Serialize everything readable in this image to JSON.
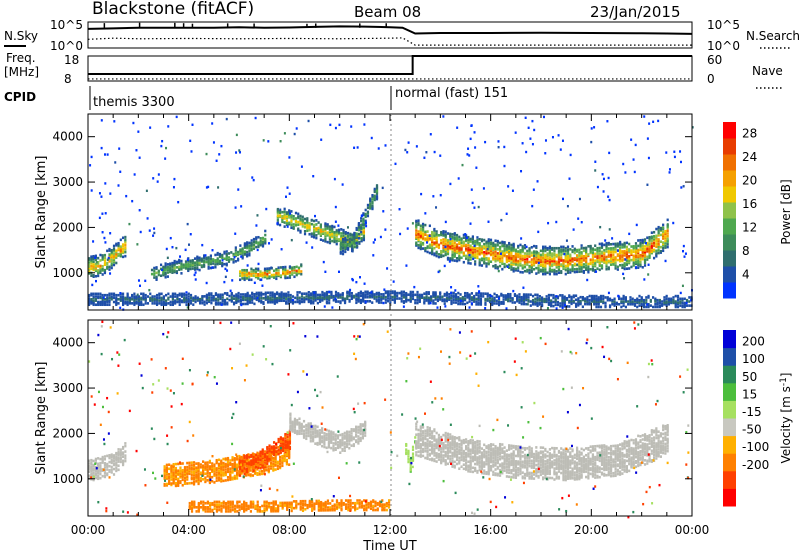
{
  "header": {
    "station": "Blackstone (fitACF)",
    "beam": "Beam 08",
    "date": "23/Jan/2015"
  },
  "top_panel": {
    "left_label": "N.Sky",
    "left_ticks": [
      "10^5",
      "10^0"
    ],
    "right_ticks": [
      "10^5",
      "10^0"
    ],
    "right_label": "N.Search"
  },
  "freq_panel": {
    "left_label_1": "Freq.",
    "left_label_2": "[MHz]",
    "left_ticks": [
      "18",
      "8"
    ],
    "right_ticks": [
      "60",
      "0"
    ],
    "right_label": "Nave"
  },
  "cpid": {
    "label": "CPID",
    "modes": [
      {
        "name": "themis 3300",
        "start_hour": 0
      },
      {
        "name": "normal (fast) 151",
        "start_hour": 12
      }
    ]
  },
  "x_axis": {
    "label": "Time UT",
    "ticks": [
      "00:00",
      "04:00",
      "08:00",
      "12:00",
      "16:00",
      "20:00",
      "00:00"
    ]
  },
  "colors": {
    "power_scale": [
      "#0033ff",
      "#1e4fa8",
      "#2f6e6e",
      "#3d8c5a",
      "#4fa84f",
      "#8fc24a",
      "#f0c800",
      "#f5a000",
      "#f07000",
      "#e83c00",
      "#ff0000"
    ],
    "velocity_scale": [
      "#ff0000",
      "#ff4000",
      "#ff8000",
      "#ffb000",
      "#c8c8c0",
      "#a6e060",
      "#4cbe3c",
      "#2a8a5a",
      "#1e4fa8",
      "#0000d8"
    ],
    "ground_scatter": "#bdbdb6"
  },
  "chart_data": [
    {
      "type": "line",
      "title": "",
      "xlabel": "",
      "ylabel": "N.Sky",
      "xlim": [
        0,
        24
      ],
      "series": [
        {
          "name": "N.Sky",
          "x": [
            0,
            1,
            2,
            3,
            4,
            5,
            6,
            7,
            8,
            9,
            10,
            11,
            12,
            12.5,
            13,
            14,
            16,
            18,
            20,
            22,
            23,
            24
          ],
          "y": [
            2.6,
            2.8,
            3.0,
            3.0,
            3.0,
            3.0,
            3.2,
            3.0,
            3.1,
            3.3,
            3.5,
            3.4,
            3.2,
            3.0,
            1.0,
            1.2,
            1.2,
            1.3,
            1.2,
            1.1,
            1.0,
            0.9
          ]
        },
        {
          "name": "N.Search",
          "x": [
            0,
            1,
            2,
            4,
            6,
            8,
            10,
            12,
            12.5,
            13,
            16,
            20,
            24
          ],
          "y": [
            -1.0,
            -0.6,
            -0.8,
            -0.7,
            -0.8,
            -0.7,
            -0.8,
            -0.6,
            -0.5,
            -3.0,
            -3.0,
            -3.0,
            -3.0
          ]
        }
      ],
      "ylim": [
        -4,
        5
      ],
      "ytick_labels": [
        "10^0",
        "10^5"
      ]
    },
    {
      "type": "line",
      "title": "",
      "xlabel": "",
      "ylabel": "Freq. [MHz]",
      "xlim": [
        0,
        24
      ],
      "series": [
        {
          "name": "Freq.",
          "x": [
            0,
            12.9,
            12.9,
            24
          ],
          "y": [
            10.8,
            10.8,
            18,
            18
          ]
        },
        {
          "name": "Nave",
          "x": [
            0,
            12.9,
            12.9,
            24
          ],
          "y": [
            5,
            5,
            5,
            5
          ]
        }
      ],
      "ylim": [
        8,
        18
      ],
      "y2lim": [
        0,
        60
      ]
    },
    {
      "type": "heatmap",
      "title": "",
      "xlabel": "",
      "ylabel": "Slant Range [km]",
      "colorbar_label": "Power [dB]",
      "colorbar_ticks": [
        4,
        8,
        12,
        16,
        20,
        24,
        28
      ],
      "zlim": [
        0,
        30
      ],
      "xlim": [
        0,
        24
      ],
      "ylim": [
        180,
        4500
      ],
      "y_ticks": [
        1000,
        2000,
        3000,
        4000
      ],
      "bands": [
        {
          "x": [
            0,
            0.5,
            1.0,
            1.5
          ],
          "center_km": [
            1150,
            1200,
            1400,
            1650
          ],
          "width_km": 450,
          "peak_db": 24
        },
        {
          "x": [
            2.5,
            3.5,
            4.5,
            5.5,
            6.5,
            7.0
          ],
          "center_km": [
            1000,
            1150,
            1250,
            1350,
            1600,
            1800
          ],
          "width_km": 300,
          "peak_db": 14
        },
        {
          "x": [
            6.0,
            7.0,
            8.0,
            8.5
          ],
          "center_km": [
            1000,
            1000,
            1050,
            1100
          ],
          "width_km": 250,
          "peak_db": 26
        },
        {
          "x": [
            7.5,
            8.5,
            9.5,
            10.5,
            11.0
          ],
          "center_km": [
            2300,
            2100,
            1900,
            1700,
            2000
          ],
          "width_km": 400,
          "peak_db": 20
        },
        {
          "x": [
            10.0,
            10.5,
            11.0,
            11.5
          ],
          "center_km": [
            1600,
            1700,
            2300,
            2900
          ],
          "width_km": 350,
          "peak_db": 12
        },
        {
          "x": [
            13.0,
            14.0,
            15.0,
            16.0,
            17.0,
            18.0,
            19.0,
            20.0,
            21.0,
            22.0,
            23.0
          ],
          "center_km": [
            1900,
            1650,
            1550,
            1450,
            1350,
            1300,
            1300,
            1350,
            1400,
            1450,
            1900
          ],
          "width_km": 600,
          "peak_db": 28
        },
        {
          "x": [
            0.0,
            4.0,
            8.0,
            12.0,
            16.0,
            20.0,
            24.0
          ],
          "center_km": [
            450,
            450,
            480,
            500,
            450,
            400,
            400
          ],
          "width_km": 250,
          "peak_db": 6
        }
      ]
    },
    {
      "type": "heatmap",
      "title": "",
      "xlabel": "Time UT",
      "ylabel": "Slant Range [km]",
      "colorbar_label": "Velocity [m s^-1]",
      "colorbar_ticks": [
        200,
        100,
        50,
        15,
        -15,
        -50,
        -100,
        -200
      ],
      "zlim": [
        -250,
        250
      ],
      "xlim": [
        0,
        24
      ],
      "ylim": [
        180,
        4500
      ],
      "y_ticks": [
        1000,
        2000,
        3000,
        4000
      ],
      "regions": [
        {
          "x": [
            0,
            1.0,
            1.5
          ],
          "center_km": [
            1200,
            1350,
            1650
          ],
          "width_km": 450,
          "velocity": 0
        },
        {
          "x": [
            3.0,
            5.0,
            7.0,
            8.0
          ],
          "center_km": [
            1100,
            1200,
            1400,
            1600
          ],
          "width_km": 500,
          "velocity": -60
        },
        {
          "x": [
            6.0,
            7.0,
            7.5,
            8.0
          ],
          "center_km": [
            1300,
            1500,
            1700,
            1900
          ],
          "width_km": 400,
          "velocity": -120
        },
        {
          "x": [
            8.0,
            9.0,
            10.0,
            11.0
          ],
          "center_km": [
            2300,
            2000,
            1800,
            2100
          ],
          "width_km": 400,
          "velocity": 0
        },
        {
          "x": [
            12.6,
            12.8,
            13.0
          ],
          "center_km": [
            1700,
            1300,
            2100
          ],
          "width_km": 300,
          "velocity": 40
        },
        {
          "x": [
            13.0,
            15.0,
            17.0,
            19.0,
            21.0,
            23.0
          ],
          "center_km": [
            1900,
            1550,
            1400,
            1350,
            1450,
            1900
          ],
          "width_km": 700,
          "velocity": 0
        },
        {
          "x": [
            4.0,
            7.0,
            10.0,
            12.0
          ],
          "center_km": [
            420,
            420,
            450,
            450
          ],
          "width_km": 220,
          "velocity": -70
        }
      ]
    }
  ]
}
